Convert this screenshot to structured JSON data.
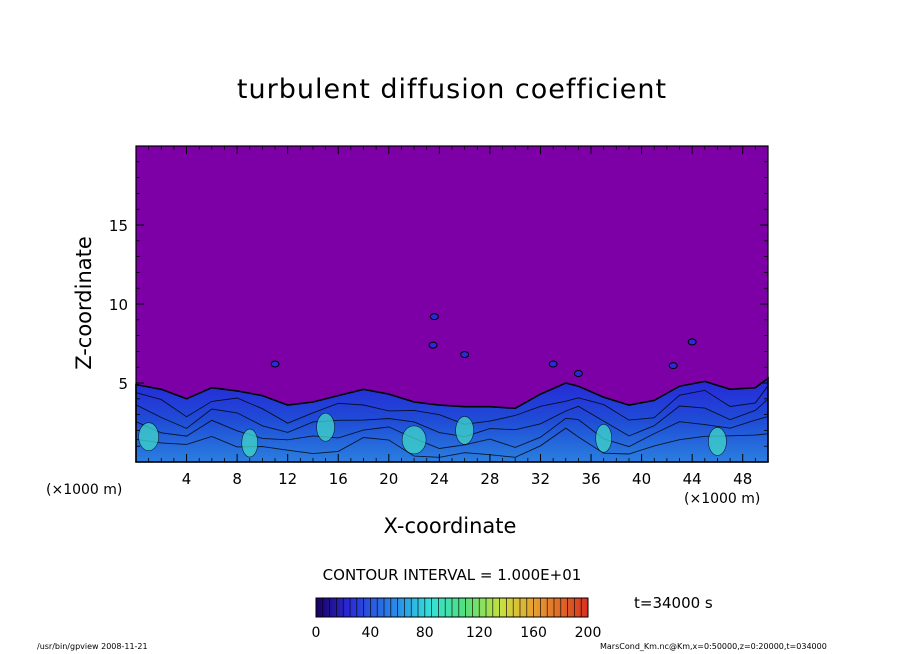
{
  "chart_data": {
    "type": "heatmap",
    "title": "turbulent diffusion coefficient",
    "xlabel": "X-coordinate",
    "ylabel": "Z-coordinate",
    "x_unit": "(×1000 m)",
    "xlim": [
      0,
      50
    ],
    "ylim": [
      0,
      20
    ],
    "x_ticks": [
      4,
      8,
      12,
      16,
      20,
      24,
      28,
      32,
      36,
      40,
      44,
      48
    ],
    "y_ticks": [
      5,
      10,
      15
    ],
    "contour_interval": "CONTOUR INTERVAL = 1.000E+01",
    "colorbar": {
      "ticks": [
        0,
        40,
        80,
        120,
        160,
        200
      ],
      "range": [
        0,
        200
      ]
    },
    "time": "t=34000 s",
    "boundary_layer_top": [
      {
        "x": 0,
        "z": 4.9
      },
      {
        "x": 2,
        "z": 4.6
      },
      {
        "x": 4,
        "z": 4.0
      },
      {
        "x": 6,
        "z": 4.7
      },
      {
        "x": 8,
        "z": 4.5
      },
      {
        "x": 10,
        "z": 4.2
      },
      {
        "x": 12,
        "z": 3.6
      },
      {
        "x": 14,
        "z": 3.8
      },
      {
        "x": 16,
        "z": 4.2
      },
      {
        "x": 18,
        "z": 4.6
      },
      {
        "x": 20,
        "z": 4.3
      },
      {
        "x": 22,
        "z": 3.8
      },
      {
        "x": 24,
        "z": 3.6
      },
      {
        "x": 26,
        "z": 3.5
      },
      {
        "x": 28,
        "z": 3.5
      },
      {
        "x": 30,
        "z": 3.4
      },
      {
        "x": 32,
        "z": 4.3
      },
      {
        "x": 34,
        "z": 5.0
      },
      {
        "x": 35,
        "z": 4.8
      },
      {
        "x": 37,
        "z": 4.1
      },
      {
        "x": 39,
        "z": 3.6
      },
      {
        "x": 41,
        "z": 3.9
      },
      {
        "x": 43,
        "z": 4.8
      },
      {
        "x": 45,
        "z": 5.1
      },
      {
        "x": 47,
        "z": 4.6
      },
      {
        "x": 49,
        "z": 4.7
      },
      {
        "x": 50,
        "z": 5.3
      }
    ]
  },
  "footer": {
    "left": "/usr/bin/gpview   2008-11-21",
    "right": "MarsCond_Km.nc@Km,x=0:50000,z=0:20000,t=034000"
  }
}
